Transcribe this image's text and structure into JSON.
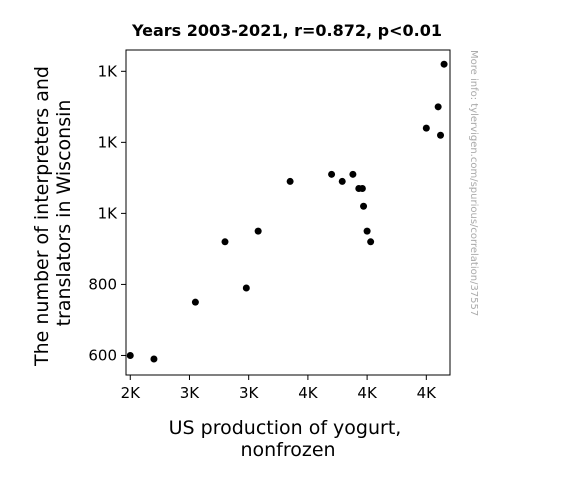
{
  "chart_data": {
    "type": "scatter",
    "title": "Years 2003-2021, r=0.872, p<0.01",
    "xlabel": [
      "US production of yogurt,",
      "nonfrozen"
    ],
    "ylabel": [
      "The number of interpreters and",
      "translators in Wisconsin"
    ],
    "xlim": [
      1964,
      4700
    ],
    "ylim": [
      545,
      1460
    ],
    "x_ticks": [
      {
        "value": 2000,
        "label": "2K"
      },
      {
        "value": 2500,
        "label": "3K"
      },
      {
        "value": 3000,
        "label": "3K"
      },
      {
        "value": 3500,
        "label": "4K"
      },
      {
        "value": 4000,
        "label": "4K"
      },
      {
        "value": 4500,
        "label": "4K"
      }
    ],
    "y_ticks": [
      {
        "value": 600,
        "label": "600"
      },
      {
        "value": 800,
        "label": "800"
      },
      {
        "value": 1000,
        "label": "1K"
      },
      {
        "value": 1200,
        "label": "1K"
      },
      {
        "value": 1400,
        "label": "1K"
      }
    ],
    "points": [
      {
        "x": 2000,
        "y": 600
      },
      {
        "x": 2200,
        "y": 590
      },
      {
        "x": 2550,
        "y": 750
      },
      {
        "x": 2800,
        "y": 920
      },
      {
        "x": 2980,
        "y": 790
      },
      {
        "x": 3080,
        "y": 950
      },
      {
        "x": 3350,
        "y": 1090
      },
      {
        "x": 3700,
        "y": 1110
      },
      {
        "x": 3790,
        "y": 1090
      },
      {
        "x": 3880,
        "y": 1110
      },
      {
        "x": 3930,
        "y": 1070
      },
      {
        "x": 3960,
        "y": 1070
      },
      {
        "x": 3970,
        "y": 1020
      },
      {
        "x": 4000,
        "y": 950
      },
      {
        "x": 4030,
        "y": 920
      },
      {
        "x": 4500,
        "y": 1240
      },
      {
        "x": 4600,
        "y": 1300
      },
      {
        "x": 4620,
        "y": 1220
      },
      {
        "x": 4650,
        "y": 1420
      }
    ],
    "point_color": "#000000",
    "grid": false,
    "legend": "none",
    "watermark": "More info: tylervigen.com/spurious/correlation/37557"
  }
}
